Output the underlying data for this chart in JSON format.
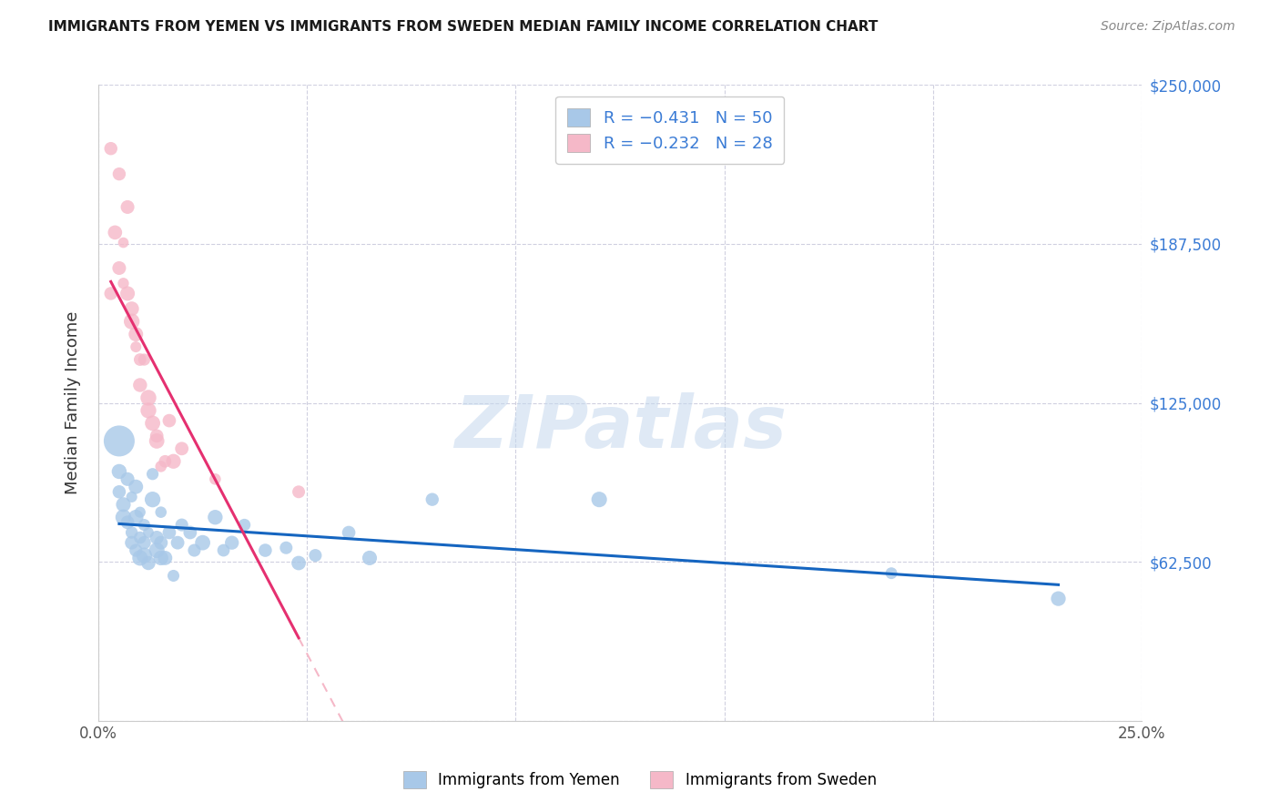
{
  "title": "IMMIGRANTS FROM YEMEN VS IMMIGRANTS FROM SWEDEN MEDIAN FAMILY INCOME CORRELATION CHART",
  "source": "Source: ZipAtlas.com",
  "ylabel": "Median Family Income",
  "xlim": [
    0,
    0.25
  ],
  "ylim": [
    0,
    250000
  ],
  "yticks": [
    0,
    62500,
    125000,
    187500,
    250000
  ],
  "ytick_labels_right": [
    "",
    "$62,500",
    "$125,000",
    "$187,500",
    "$250,000"
  ],
  "xticks": [
    0.0,
    0.05,
    0.1,
    0.15,
    0.2,
    0.25
  ],
  "xtick_labels": [
    "0.0%",
    "",
    "",
    "",
    "",
    "25.0%"
  ],
  "watermark_text": "ZIPatlas",
  "blue_color": "#a8c8e8",
  "pink_color": "#f5b8c8",
  "blue_line_color": "#1565c0",
  "pink_line_color": "#e53070",
  "dashed_line_color": "#f5b8c8",
  "background_color": "#ffffff",
  "legend_text_color": "#3a7bd5",
  "yemen_x": [
    0.005,
    0.005,
    0.005,
    0.006,
    0.006,
    0.007,
    0.007,
    0.008,
    0.008,
    0.008,
    0.009,
    0.009,
    0.009,
    0.01,
    0.01,
    0.01,
    0.011,
    0.011,
    0.011,
    0.012,
    0.012,
    0.013,
    0.013,
    0.014,
    0.014,
    0.015,
    0.015,
    0.015,
    0.016,
    0.017,
    0.018,
    0.019,
    0.02,
    0.022,
    0.023,
    0.025,
    0.028,
    0.03,
    0.032,
    0.035,
    0.04,
    0.045,
    0.048,
    0.052,
    0.06,
    0.065,
    0.08,
    0.12,
    0.19,
    0.23
  ],
  "yemen_y": [
    110000,
    98000,
    90000,
    85000,
    80000,
    95000,
    78000,
    88000,
    74000,
    70000,
    92000,
    80000,
    67000,
    82000,
    72000,
    64000,
    77000,
    70000,
    65000,
    74000,
    62000,
    87000,
    97000,
    72000,
    67000,
    82000,
    70000,
    64000,
    64000,
    74000,
    57000,
    70000,
    77000,
    74000,
    67000,
    70000,
    80000,
    67000,
    70000,
    77000,
    67000,
    68000,
    62000,
    65000,
    74000,
    64000,
    87000,
    87000,
    58000,
    48000
  ],
  "sweden_x": [
    0.003,
    0.003,
    0.004,
    0.005,
    0.005,
    0.006,
    0.006,
    0.007,
    0.007,
    0.008,
    0.008,
    0.009,
    0.009,
    0.01,
    0.01,
    0.011,
    0.012,
    0.012,
    0.013,
    0.014,
    0.014,
    0.015,
    0.016,
    0.017,
    0.018,
    0.02,
    0.028,
    0.048
  ],
  "sweden_y": [
    168000,
    225000,
    192000,
    178000,
    215000,
    188000,
    172000,
    168000,
    202000,
    162000,
    157000,
    152000,
    147000,
    142000,
    132000,
    142000,
    127000,
    122000,
    117000,
    112000,
    110000,
    100000,
    102000,
    118000,
    102000,
    107000,
    95000,
    90000
  ],
  "yemen_sizes_base": 100,
  "sweden_sizes_base": 100,
  "large_blue_size": 600,
  "title_fontsize": 11,
  "source_fontsize": 10,
  "axis_label_fontsize": 13,
  "tick_fontsize": 12,
  "legend_fontsize": 13
}
